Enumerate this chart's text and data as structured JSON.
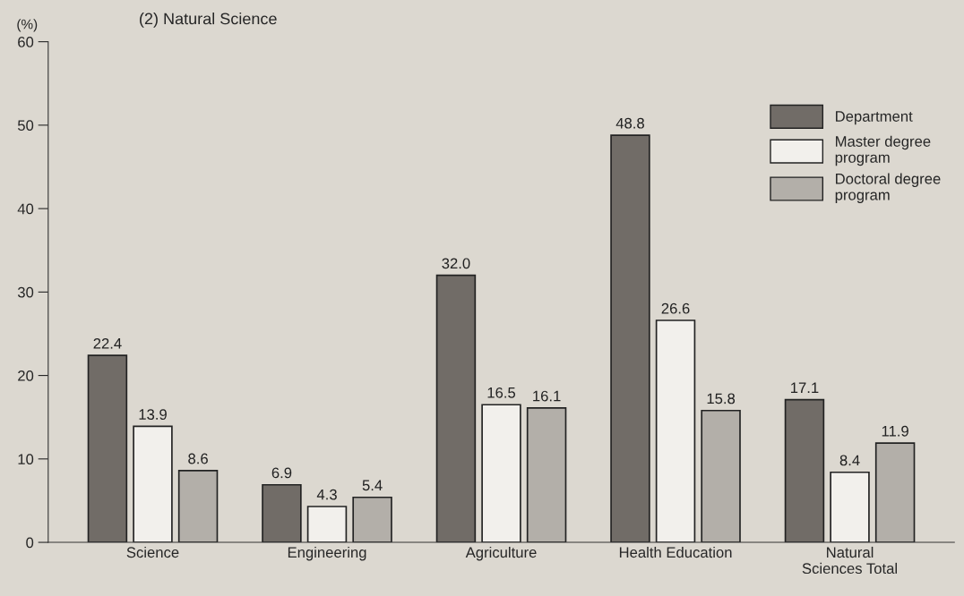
{
  "chart_data": {
    "type": "bar",
    "title": "(2) Natural Science",
    "ylabel": "(%)",
    "categories": [
      "Science",
      "Engineering",
      "Agriculture",
      "Health Education",
      "Natural\nSciences Total"
    ],
    "series": [
      {
        "name": "Department",
        "color": "#716c67",
        "values": [
          22.4,
          6.9,
          32.0,
          48.8,
          17.1
        ],
        "value_labels": [
          "22.4",
          "6.9",
          "32.0",
          "48.8",
          "17.1"
        ]
      },
      {
        "name": "Master degree\nprogram",
        "color": "#f2f0ec",
        "values": [
          13.9,
          4.3,
          16.5,
          26.6,
          8.4
        ],
        "value_labels": [
          "13.9",
          "4.3",
          "16.5",
          "26.6",
          "8.4"
        ]
      },
      {
        "name": "Doctoral degree\nprogram",
        "color": "#b3afa9",
        "values": [
          8.6,
          5.4,
          16.1,
          15.8,
          11.9
        ],
        "value_labels": [
          "8.6",
          "5.4",
          "16.1",
          "15.8",
          "11.9"
        ]
      }
    ],
    "ylim": [
      0,
      60
    ],
    "yticks": [
      0,
      10,
      20,
      30,
      40,
      50,
      60
    ],
    "grid": false,
    "legend": "top right"
  }
}
